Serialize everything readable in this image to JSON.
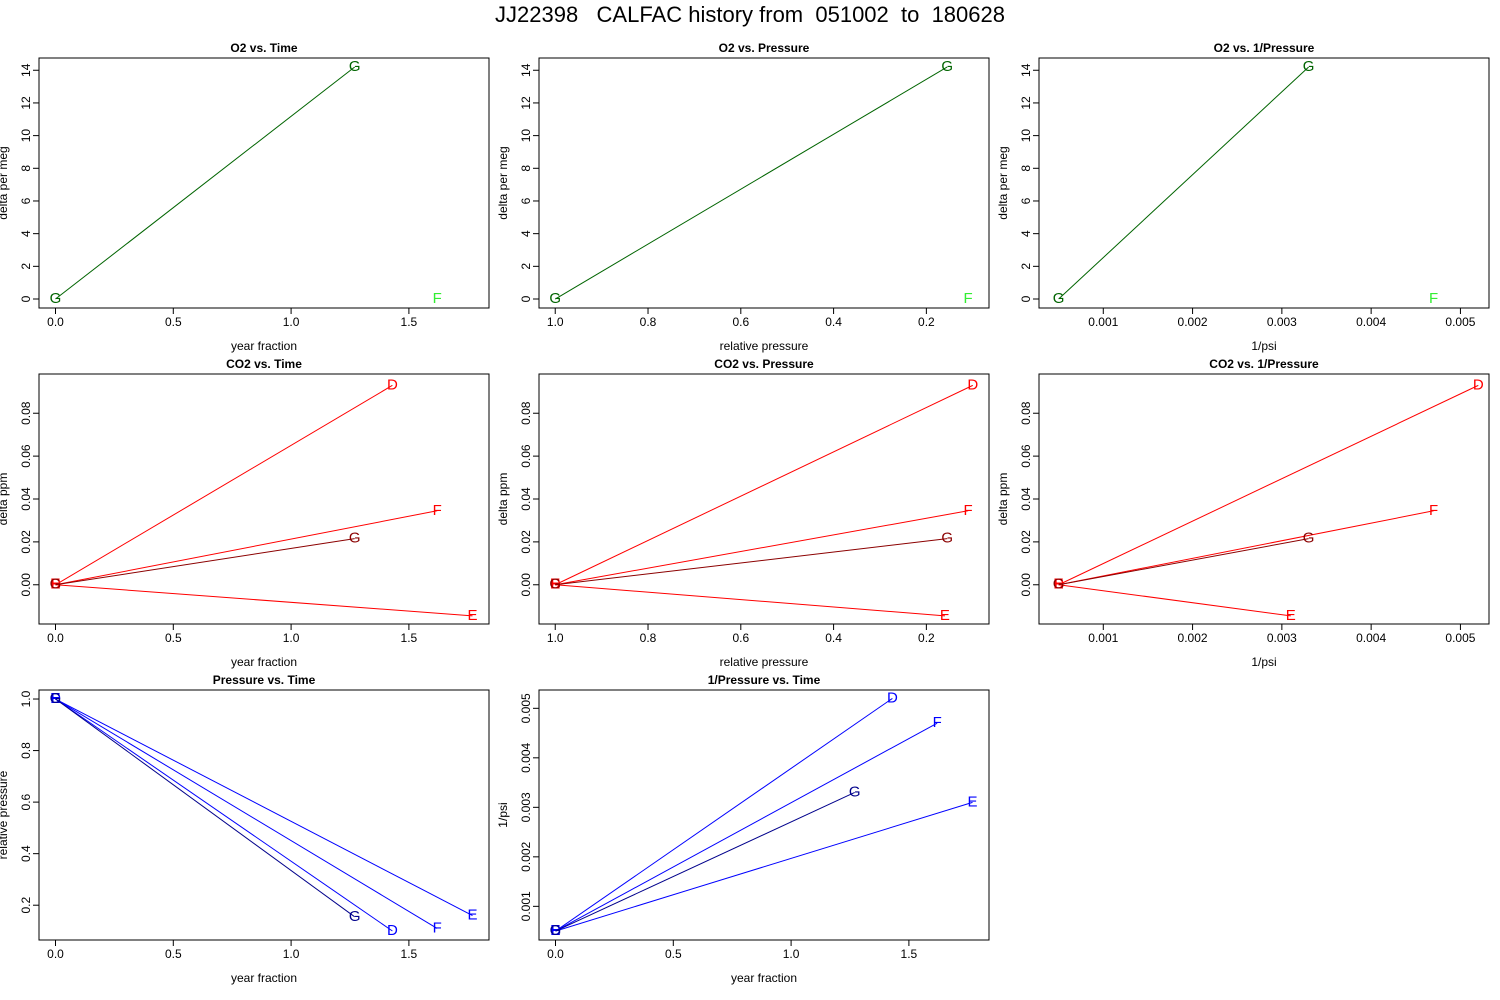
{
  "page": {
    "title": "JJ22398   CALFAC history from  051002  to  180628"
  },
  "colors": {
    "G_o2": "#006400",
    "F_o2": "#33ee33",
    "D_co2": "#ff0000",
    "E_co2": "#ff0000",
    "F_co2": "#ff0000",
    "G_co2": "#8b0000",
    "D_p": "#0000ff",
    "E_p": "#0000ff",
    "F_p": "#0000ff",
    "G_p": "#00008b"
  },
  "chart_data": [
    {
      "type": "line",
      "title": "O2 vs. Time",
      "xlabel": "year fraction",
      "ylabel": "delta per meg",
      "xlim": [
        -0.07,
        1.84
      ],
      "ylim": [
        -0.55,
        14.75
      ],
      "xticks": [
        0.0,
        0.5,
        1.0,
        1.5
      ],
      "xtick_labels": [
        "0.0",
        "0.5",
        "1.0",
        "1.5"
      ],
      "yticks": [
        0,
        2,
        4,
        6,
        8,
        10,
        12,
        14
      ],
      "ytick_labels": [
        "0",
        "2",
        "4",
        "6",
        "8",
        "10",
        "12",
        "14"
      ],
      "series": [
        {
          "name": "G",
          "color": "#006400",
          "x": [
            0,
            1.27
          ],
          "y": [
            0,
            14.2
          ]
        },
        {
          "name": "F",
          "color": "#33ee33",
          "x": [
            1.62
          ],
          "y": [
            0
          ]
        }
      ]
    },
    {
      "type": "line",
      "title": "O2 vs. Pressure",
      "xlabel": "relative pressure",
      "ylabel": "delta per meg",
      "xlim": [
        1.035,
        0.065
      ],
      "ylim": [
        -0.55,
        14.75
      ],
      "x_reversed": true,
      "xticks": [
        1.0,
        0.8,
        0.6,
        0.4,
        0.2
      ],
      "xtick_labels": [
        "1.0",
        "0.8",
        "0.6",
        "0.4",
        "0.2"
      ],
      "yticks": [
        0,
        2,
        4,
        6,
        8,
        10,
        12,
        14
      ],
      "ytick_labels": [
        "0",
        "2",
        "4",
        "6",
        "8",
        "10",
        "12",
        "14"
      ],
      "series": [
        {
          "name": "G",
          "color": "#006400",
          "x": [
            1.0,
            0.155
          ],
          "y": [
            0,
            14.2
          ]
        },
        {
          "name": "F",
          "color": "#33ee33",
          "x": [
            0.11
          ],
          "y": [
            0
          ]
        }
      ]
    },
    {
      "type": "line",
      "title": "O2 vs. 1/Pressure",
      "xlabel": "1/psi",
      "ylabel": "delta per meg",
      "xlim": [
        0.00028,
        0.00532
      ],
      "ylim": [
        -0.55,
        14.75
      ],
      "xticks": [
        0.001,
        0.002,
        0.003,
        0.004,
        0.005
      ],
      "xtick_labels": [
        "0.001",
        "0.002",
        "0.003",
        "0.004",
        "0.005"
      ],
      "yticks": [
        0,
        2,
        4,
        6,
        8,
        10,
        12,
        14
      ],
      "ytick_labels": [
        "0",
        "2",
        "4",
        "6",
        "8",
        "10",
        "12",
        "14"
      ],
      "series": [
        {
          "name": "G",
          "color": "#006400",
          "x": [
            0.0005,
            0.0033
          ],
          "y": [
            0,
            14.2
          ]
        },
        {
          "name": "F",
          "color": "#33ee33",
          "x": [
            0.0047
          ],
          "y": [
            0
          ]
        }
      ]
    },
    {
      "type": "line",
      "title": "CO2 vs. Time",
      "xlabel": "year fraction",
      "ylabel": "delta ppm",
      "xlim": [
        -0.07,
        1.84
      ],
      "ylim": [
        -0.0183,
        0.0983
      ],
      "xticks": [
        0.0,
        0.5,
        1.0,
        1.5
      ],
      "xtick_labels": [
        "0.0",
        "0.5",
        "1.0",
        "1.5"
      ],
      "yticks": [
        0.0,
        0.02,
        0.04,
        0.06,
        0.08
      ],
      "ytick_labels": [
        "0.00",
        "0.02",
        "0.04",
        "0.06",
        "0.08"
      ],
      "series": [
        {
          "name": "D",
          "color": "#ff0000",
          "x": [
            0,
            1.43
          ],
          "y": [
            0,
            0.093
          ]
        },
        {
          "name": "E",
          "color": "#ff0000",
          "x": [
            0,
            1.77
          ],
          "y": [
            0,
            -0.0145
          ]
        },
        {
          "name": "F",
          "color": "#ff0000",
          "x": [
            0,
            1.62
          ],
          "y": [
            0,
            0.0345
          ]
        },
        {
          "name": "G",
          "color": "#8b0000",
          "x": [
            0,
            1.27
          ],
          "y": [
            0,
            0.0215
          ]
        }
      ]
    },
    {
      "type": "line",
      "title": "CO2 vs. Pressure",
      "xlabel": "relative pressure",
      "ylabel": "delta ppm",
      "xlim": [
        1.035,
        0.065
      ],
      "ylim": [
        -0.0183,
        0.0983
      ],
      "x_reversed": true,
      "xticks": [
        1.0,
        0.8,
        0.6,
        0.4,
        0.2
      ],
      "xtick_labels": [
        "1.0",
        "0.8",
        "0.6",
        "0.4",
        "0.2"
      ],
      "yticks": [
        0.0,
        0.02,
        0.04,
        0.06,
        0.08
      ],
      "ytick_labels": [
        "0.00",
        "0.02",
        "0.04",
        "0.06",
        "0.08"
      ],
      "series": [
        {
          "name": "D",
          "color": "#ff0000",
          "x": [
            1.0,
            0.1
          ],
          "y": [
            0,
            0.093
          ]
        },
        {
          "name": "E",
          "color": "#ff0000",
          "x": [
            1.0,
            0.16
          ],
          "y": [
            0,
            -0.0145
          ]
        },
        {
          "name": "F",
          "color": "#ff0000",
          "x": [
            1.0,
            0.11
          ],
          "y": [
            0,
            0.0345
          ]
        },
        {
          "name": "G",
          "color": "#8b0000",
          "x": [
            1.0,
            0.155
          ],
          "y": [
            0,
            0.0215
          ]
        }
      ]
    },
    {
      "type": "line",
      "title": "CO2 vs. 1/Pressure",
      "xlabel": "1/psi",
      "ylabel": "delta ppm",
      "xlim": [
        0.00028,
        0.00532
      ],
      "ylim": [
        -0.0183,
        0.0983
      ],
      "xticks": [
        0.001,
        0.002,
        0.003,
        0.004,
        0.005
      ],
      "xtick_labels": [
        "0.001",
        "0.002",
        "0.003",
        "0.004",
        "0.005"
      ],
      "yticks": [
        0.0,
        0.02,
        0.04,
        0.06,
        0.08
      ],
      "ytick_labels": [
        "0.00",
        "0.02",
        "0.04",
        "0.06",
        "0.08"
      ],
      "series": [
        {
          "name": "D",
          "color": "#ff0000",
          "x": [
            0.0005,
            0.0052
          ],
          "y": [
            0,
            0.093
          ]
        },
        {
          "name": "E",
          "color": "#ff0000",
          "x": [
            0.0005,
            0.0031
          ],
          "y": [
            0,
            -0.0145
          ]
        },
        {
          "name": "F",
          "color": "#ff0000",
          "x": [
            0.0005,
            0.0047
          ],
          "y": [
            0,
            0.0345
          ]
        },
        {
          "name": "G",
          "color": "#8b0000",
          "x": [
            0.0005,
            0.0033
          ],
          "y": [
            0,
            0.0215
          ]
        }
      ]
    },
    {
      "type": "line",
      "title": "Pressure vs. Time",
      "xlabel": "year fraction",
      "ylabel": "relative pressure",
      "xlim": [
        -0.07,
        1.84
      ],
      "ylim": [
        0.065,
        1.035
      ],
      "xticks": [
        0.0,
        0.5,
        1.0,
        1.5
      ],
      "xtick_labels": [
        "0.0",
        "0.5",
        "1.0",
        "1.5"
      ],
      "yticks": [
        0.2,
        0.4,
        0.6,
        0.8,
        1.0
      ],
      "ytick_labels": [
        "0.2",
        "0.4",
        "0.6",
        "0.8",
        "1.0"
      ],
      "series": [
        {
          "name": "D",
          "color": "#0000ff",
          "x": [
            0,
            1.43
          ],
          "y": [
            1.0,
            0.1
          ]
        },
        {
          "name": "E",
          "color": "#0000ff",
          "x": [
            0,
            1.77
          ],
          "y": [
            1.0,
            0.16
          ]
        },
        {
          "name": "F",
          "color": "#0000ff",
          "x": [
            0,
            1.62
          ],
          "y": [
            1.0,
            0.11
          ]
        },
        {
          "name": "G",
          "color": "#00008b",
          "x": [
            0,
            1.27
          ],
          "y": [
            1.0,
            0.155
          ]
        }
      ]
    },
    {
      "type": "line",
      "title": "1/Pressure vs. Time",
      "xlabel": "year fraction",
      "ylabel": "1/psi",
      "xlim": [
        -0.07,
        1.84
      ],
      "ylim": [
        0.00032,
        0.00537
      ],
      "xticks": [
        0.0,
        0.5,
        1.0,
        1.5
      ],
      "xtick_labels": [
        "0.0",
        "0.5",
        "1.0",
        "1.5"
      ],
      "yticks": [
        0.001,
        0.002,
        0.003,
        0.004,
        0.005
      ],
      "ytick_labels": [
        "0.001",
        "0.002",
        "0.003",
        "0.004",
        "0.005"
      ],
      "series": [
        {
          "name": "D",
          "color": "#0000ff",
          "x": [
            0,
            1.43
          ],
          "y": [
            0.0005,
            0.0052
          ]
        },
        {
          "name": "E",
          "color": "#0000ff",
          "x": [
            0,
            1.77
          ],
          "y": [
            0.0005,
            0.0031
          ]
        },
        {
          "name": "F",
          "color": "#0000ff",
          "x": [
            0,
            1.62
          ],
          "y": [
            0.0005,
            0.0047
          ]
        },
        {
          "name": "G",
          "color": "#00008b",
          "x": [
            0,
            1.27
          ],
          "y": [
            0.0005,
            0.0033
          ]
        }
      ]
    }
  ]
}
